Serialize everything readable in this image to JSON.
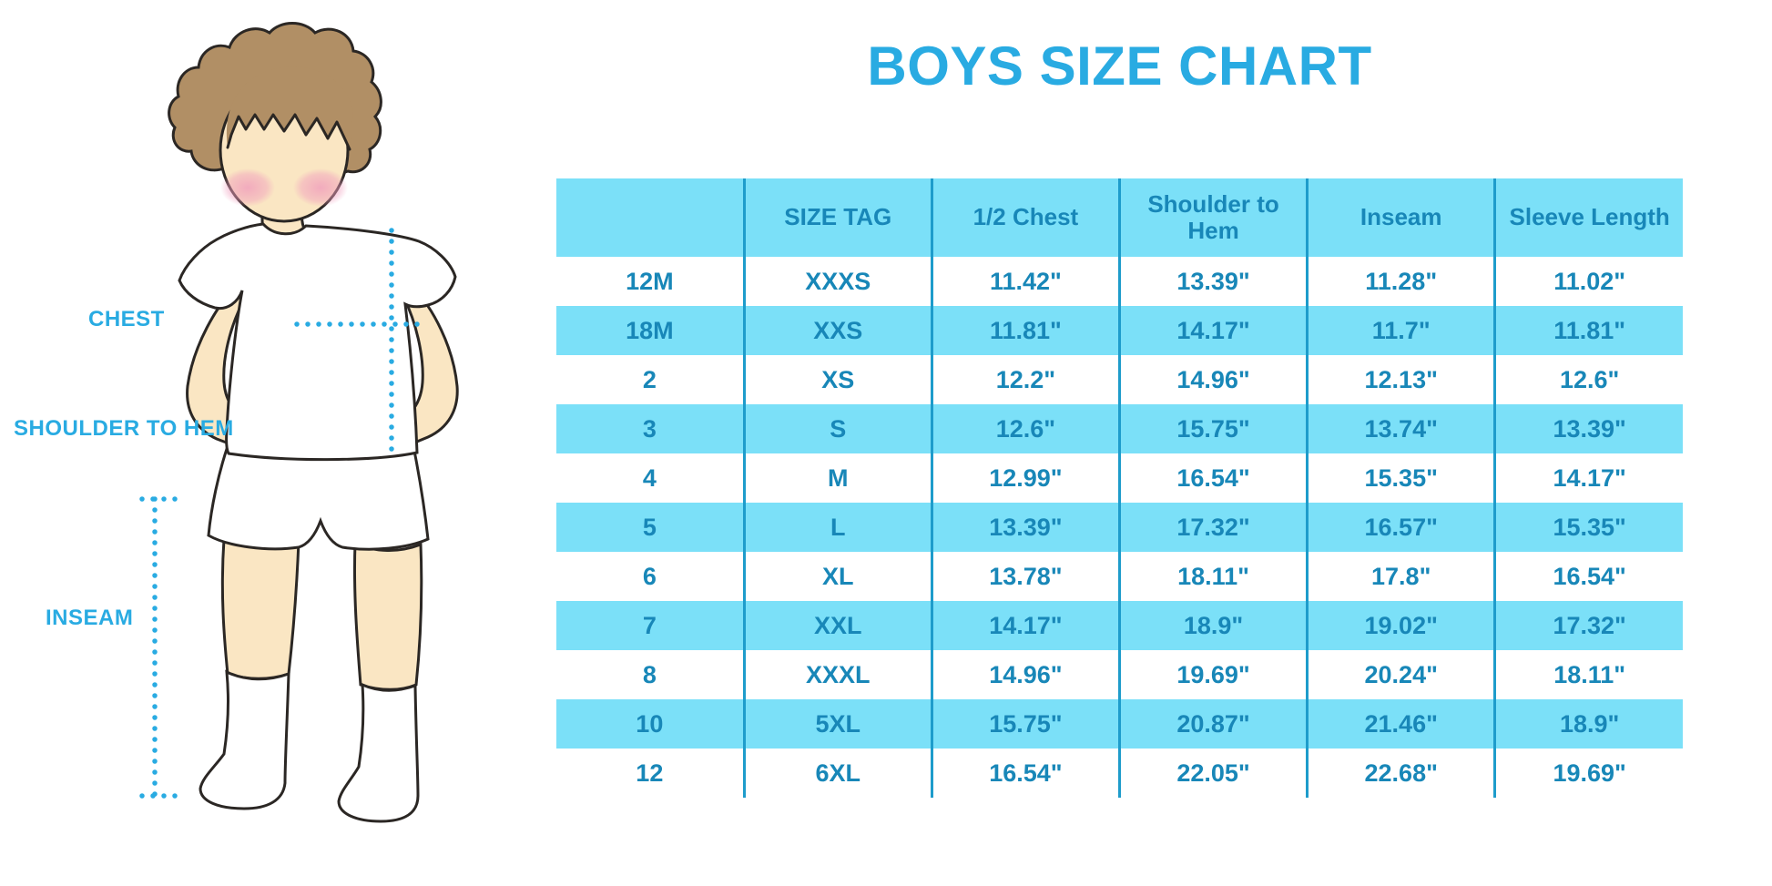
{
  "title": "BOYS SIZE CHART",
  "colors": {
    "accent_blue": "#29ABE2",
    "cell_blue": "#7BE0F8",
    "table_text_blue": "#1887B8",
    "grid_line_blue": "#1E9CCB",
    "skin": "#FAE6C3",
    "hair": "#B18F65",
    "outline": "#2B2724"
  },
  "figure": {
    "labels": {
      "chest": "CHEST",
      "shoulder_to_hem": "SHOULDER TO HEM",
      "inseam": "INSEAM"
    }
  },
  "chart_data": {
    "type": "table",
    "title": "BOYS SIZE CHART",
    "columns": [
      "",
      "SIZE TAG",
      "1/2 Chest",
      "Shoulder to Hem",
      "Inseam",
      "Sleeve Length"
    ],
    "rows": [
      [
        "12M",
        "XXXS",
        "11.42\"",
        "13.39\"",
        "11.28\"",
        "11.02\""
      ],
      [
        "18M",
        "XXS",
        "11.81\"",
        "14.17\"",
        "11.7\"",
        "11.81\""
      ],
      [
        "2",
        "XS",
        "12.2\"",
        "14.96\"",
        "12.13\"",
        "12.6\""
      ],
      [
        "3",
        "S",
        "12.6\"",
        "15.75\"",
        "13.74\"",
        "13.39\""
      ],
      [
        "4",
        "M",
        "12.99\"",
        "16.54\"",
        "15.35\"",
        "14.17\""
      ],
      [
        "5",
        "L",
        "13.39\"",
        "17.32\"",
        "16.57\"",
        "15.35\""
      ],
      [
        "6",
        "XL",
        "13.78\"",
        "18.11\"",
        "17.8\"",
        "16.54\""
      ],
      [
        "7",
        "XXL",
        "14.17\"",
        "18.9\"",
        "19.02\"",
        "17.32\""
      ],
      [
        "8",
        "XXXL",
        "14.96\"",
        "19.69\"",
        "20.24\"",
        "18.11\""
      ],
      [
        "10",
        "5XL",
        "15.75\"",
        "20.87\"",
        "21.46\"",
        "18.9\""
      ],
      [
        "12",
        "6XL",
        "16.54\"",
        "22.05\"",
        "22.68\"",
        "19.69\""
      ]
    ],
    "units": "inches",
    "legend_position": "none",
    "grid": "vertical-separators-only"
  }
}
